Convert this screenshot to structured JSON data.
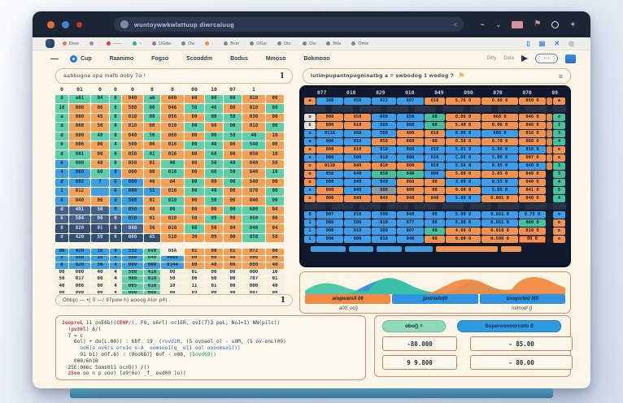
{
  "theme": {
    "titlebar": "#1d2634",
    "body": "#fbf5e8",
    "accent_blue": "#1f7ae0",
    "traffic_lights": [
      "#e8722c",
      "#3b82d8",
      "#c0392b"
    ],
    "cell_green": "#5ecfa6",
    "cell_orange": "#f2a159",
    "cell_blue": "#3f9ede",
    "cell_dark": "#46628b"
  },
  "browser": {
    "url": "wuntoywwkwlattuup diwrcaluug",
    "url_end": "<"
  },
  "bookmarks": {
    "items": [
      {
        "dot": "#e8793a",
        "label": "Dww"
      },
      {
        "dot": "#8a9ab0",
        "label": ""
      },
      {
        "dot": "#d04030",
        "label": "——"
      },
      {
        "dot": "#2fae7e",
        "label": "~"
      },
      {
        "dot": "#7a8694",
        "label": "DGtiw"
      },
      {
        "dot": "#7a8694",
        "label": "Ow"
      },
      {
        "dot": "#f09040",
        "label": "-"
      },
      {
        "dot": "#7a8694",
        "label": "Bcm"
      },
      {
        "dot": "#7a8694",
        "label": "OGw"
      },
      {
        "dot": "#7a8694",
        "label": "Oto."
      },
      {
        "dot": "#7a8694",
        "label": "Ow"
      },
      {
        "dot": "#7a8694",
        "label": "Btta"
      },
      {
        "dot": "#7a8694",
        "label": "Omw"
      }
    ]
  },
  "menu": {
    "dash": "—",
    "items": [
      "Cup",
      "Raanimo",
      "Fogso",
      "Scooddm",
      "Bodus",
      "Mmoso",
      "Bokmooo"
    ],
    "right_labels": [
      "Ditty",
      "Data"
    ],
    "pill": "⋯"
  },
  "formula_left": {
    "text": "aabbugoa opa mafb ooby 7o !",
    "end": "1"
  },
  "formula_right": {
    "text": "lutimpupantnpugninatbg a = swbodog 1 wodog ?",
    "flag": "⚑",
    "menu": "≡"
  },
  "left_grid": {
    "col_headers": [
      "0",
      "01",
      "0",
      "0",
      "0",
      "8",
      "8",
      "00",
      "10",
      "07",
      "1",
      ""
    ],
    "rows": [
      {
        "c": "GGGGOGOOGGOO",
        "v": [
          "d",
          "a01",
          "04",
          "0",
          "040",
          "a0",
          "660",
          "60",
          "00",
          "08",
          "010",
          "00"
        ]
      },
      {
        "c": "GOOGOGOGGOOG",
        "v": [
          "i6",
          "000",
          "06",
          "0",
          "500",
          "00",
          "046",
          "50",
          "40",
          "00",
          "010",
          "00"
        ]
      },
      {
        "c": "GOOGOGOOGGOO",
        "v": [
          "a",
          "060",
          "45",
          "0",
          "010",
          "08",
          "056",
          "00",
          "00",
          "58",
          "030",
          "00"
        ]
      },
      {
        "c": "GOOGOOOGOGOG",
        "v": [
          "d",
          "060",
          "50",
          "0",
          "010",
          "60",
          "010",
          "00",
          "60",
          "00",
          "010",
          "06"
        ]
      },
      {
        "c": "GOGGOGOOGGGO",
        "v": [
          "d",
          "000",
          "40",
          "0",
          "040",
          "50",
          "060",
          "00",
          "00",
          "50",
          "40",
          "10"
        ]
      },
      {
        "c": "GOOGOOOGGOGO",
        "v": [
          "6",
          "006",
          "00",
          "4",
          "500",
          "06",
          "016",
          "00",
          "40",
          "06",
          "540",
          "00"
        ]
      },
      {
        "c": "GGOGOGOOGOOO",
        "v": [
          "d",
          "001",
          "00",
          "0",
          "050",
          "01",
          "016",
          "00",
          "60",
          "00",
          "050",
          "10"
        ]
      },
      {
        "c": "BGOGOOGOGGOO",
        "v": [
          "6",
          "000",
          "40",
          "0",
          "050",
          "01",
          "40",
          "00",
          "50",
          "40",
          "040",
          "50"
        ]
      },
      {
        "c": "BBGBOOGOGGOG",
        "v": [
          "4",
          "060",
          "60",
          "0",
          "000",
          "00",
          "016",
          "00",
          "60",
          "50",
          "640",
          "10"
        ]
      },
      {
        "c": "BBBBBOOGOGOO",
        "v": [
          "d",
          "002",
          "7",
          "6",
          "000",
          "46",
          "d4",
          "00",
          "60",
          "00",
          "540",
          "00"
        ]
      },
      {
        "c": "BOBBBBOGGOOG",
        "v": [
          "1",
          "012",
          "",
          "6",
          "000",
          "51",
          "016",
          "00",
          "40",
          "00",
          "070",
          "00"
        ]
      },
      {
        "c": "BOOBBOGOGOOG",
        "v": [
          "6",
          "040",
          "06",
          "d",
          "500",
          "01",
          "010",
          "00",
          "50",
          "00",
          "040",
          "00"
        ]
      },
      {
        "c": "DDDBBOGOOGGO",
        "v": [
          "d",
          "401",
          "50",
          "0",
          "050",
          "40",
          "00",
          "00",
          "00",
          "00",
          "600",
          "04"
        ]
      },
      {
        "c": "DDDDBOOOGOGO",
        "v": [
          "6",
          "504",
          "06",
          "0",
          "050",
          "01",
          "010",
          "50",
          "09",
          "98",
          "050",
          "00"
        ]
      },
      {
        "c": "NNNNDOOGOOGO",
        "v": [
          "8",
          "020",
          "01",
          "0",
          "040",
          "56",
          "010",
          "00",
          "50",
          "04",
          "040",
          "04"
        ]
      },
      {
        "c": "NNNNNNOOOOGO",
        "v": [
          "d",
          "420",
          "59",
          "6",
          "000",
          "45",
          "510",
          "30",
          "09",
          "00",
          "050",
          "50"
        ]
      }
    ],
    "rows2": [
      {
        "c": "BBBBBGWOOOOO",
        "v": [
          "d6",
          "420",
          "16",
          "4",
          "532",
          "6v0",
          "05A",
          "01",
          "00",
          "01",
          "072",
          "00"
        ]
      },
      {
        "c": "BBBBBGBOOOOO",
        "v": [
          "0",
          "000",
          "10",
          "4",
          "500",
          "040",
          "4400",
          "00",
          "00",
          "40",
          "000",
          "00"
        ]
      },
      {
        "c": "BBBBBBBOOOOO",
        "v": [
          "0",
          "020",
          "50",
          "4",
          "000",
          "000",
          "0144",
          "00",
          "40",
          "00",
          "000",
          "40"
        ]
      },
      {
        "c": "WWWWGGWWWWWW",
        "v": [
          "00",
          "000",
          "40",
          "4",
          "500",
          "410",
          "00",
          "01",
          "00",
          "00",
          "000",
          "10"
        ]
      },
      {
        "c": "WWWWGGWWWWWW",
        "v": [
          "50",
          "017",
          "00",
          "4",
          "900",
          "010",
          "50",
          "06",
          "60",
          "00",
          "707",
          "01"
        ]
      },
      {
        "c": "WWWWGGWWWWWW",
        "v": [
          "40",
          "006",
          "00",
          "4",
          "005",
          "010",
          "10",
          "11",
          "01",
          "00",
          "000",
          "40"
        ]
      },
      {
        "c": "WWWWGGWWWWWW",
        "v": [
          "00",
          "000",
          "00",
          "4",
          "000",
          "000",
          "00",
          "05",
          "00",
          "40",
          "007",
          "00"
        ]
      }
    ]
  },
  "status_bar": {
    "text": "Obbp) — •( 0 —/ 97pow h) aooog Alor p4) .",
    "end": "1"
  },
  "right_table": {
    "headers": [
      "077",
      "010",
      "029",
      "010",
      "049",
      "090",
      "070",
      "070",
      "09"
    ],
    "rows": [
      {
        "l": "O:a",
        "cells": [
          "B:380",
          "B:050",
          "B:022",
          "B:607",
          "O:010",
          "O:5.76 0",
          "O:0.80 0",
          "O:050 0"
        ],
        "r": "O:a"
      },
      {
        "sep": true
      },
      {
        "l": "W:o",
        "cells": [
          "O:000",
          "O:650",
          "B:060",
          "B:650",
          "G:60",
          "O:0.06 0",
          "O:060 0",
          "O:046 0"
        ],
        "r": "G:o"
      },
      {
        "l": "W:6",
        "cells": [
          "O:000",
          "O:610",
          "B:560",
          "B:060",
          "G:60",
          "O:5.40 0",
          "O:0.06 0",
          "O:046 0"
        ],
        "r": "G:2"
      },
      {
        "l": "B:o",
        "cells": [
          "B:0116",
          "B:668",
          "B:560",
          "O:400",
          "O:010",
          "B:0.06 0",
          "B:800 0",
          "O:016 0"
        ],
        "r": "G:3"
      },
      {
        "l": "B:a",
        "cells": [
          "B:006",
          "B:010",
          "O:050",
          "O:060",
          "O:00",
          "O:0.50 0",
          "O:0.70 0",
          "O:060 0"
        ],
        "r": "G:4"
      },
      {
        "l": "O:o",
        "cells": [
          "O:000",
          "O:010",
          "B:010",
          "B:060",
          "B:010",
          "B:5.01 0",
          "B:5.06 0",
          "B:010 0"
        ],
        "r": "O:o"
      },
      {
        "l": "B:s",
        "cells": [
          "B:000",
          "B:500",
          "B:010",
          "B:000",
          "B:010",
          "B:C.05 0",
          "B:5.00 0",
          "O:007 0"
        ],
        "r": "O:o"
      },
      {
        "l": "O:o",
        "cells": [
          "O:0110",
          "O:040",
          "O:010",
          "O:000",
          "B:010",
          "B:5.56 0",
          "B:0.05 0",
          "B:040 0"
        ],
        "r": "G:3"
      },
      {
        "l": "O:o",
        "cells": [
          "B:050",
          "B:040",
          "G:050",
          "G:040",
          "B:000",
          "O:5.00 0",
          "O:2.05 0",
          "O:040 0"
        ],
        "r": "G:3"
      },
      {
        "l": "O:o",
        "cells": [
          "B:000",
          "B:040",
          "B:040",
          "O:060",
          "O:00",
          "B:3.00 0",
          "B:0.55 0",
          "O:040 0"
        ],
        "r": "G:4"
      },
      {
        "l": "B:s",
        "cells": [
          "O:000",
          "B:040",
          "Y:000",
          "O:000",
          "O:00",
          "O:0.00 0",
          "B:5.05 0",
          "O:041 0"
        ],
        "r": "G:5"
      },
      {
        "l": "O:o",
        "cells": [
          "O:000",
          "O:040",
          "O:040",
          "O:040",
          "O:040",
          "B:5.00 0",
          "O:0.001 0",
          "O:040 0"
        ],
        "r": "G:4"
      },
      {
        "sep": true
      },
      {
        "l": "B:0",
        "cells": [
          "B:007",
          "B:010",
          "B:500",
          "B:040",
          "B:00",
          "B:5.00 0",
          "B:0.661 0",
          "B:0.75 0"
        ],
        "r": "B:o"
      },
      {
        "l": "B:1",
        "cells": [
          "B:000",
          "B:500",
          "B:010",
          "B:077",
          "B:00",
          "B:5.88 0",
          "B:0.661 0",
          "G:060 0"
        ],
        "r": "O:o"
      },
      {
        "l": "B:1",
        "cells": [
          "B:000",
          "B:010",
          "B:500",
          "B:007",
          "G:00",
          "O:4.00 0",
          "O:0.010 0",
          "O:010 0"
        ],
        "r": "O:o"
      },
      {
        "l": "B:1",
        "cells": [
          "B:000",
          "B:000",
          "B:010",
          "B:040",
          "O:00",
          "O:0.00 0",
          "O:0.500 0",
          "R:00 0"
        ],
        "r": "O:o"
      }
    ],
    "footer": [
      {
        "color": "#3f9ee0",
        "w": 14
      },
      {
        "color": "#3f9ee0",
        "w": 10
      },
      {
        "color": "#3f9ee0",
        "w": 10
      },
      {
        "color": "#3f9ee0",
        "w": 11
      },
      {
        "color": "#ef9450",
        "w": 25
      },
      {
        "color": "#ef9450",
        "w": 8
      }
    ]
  },
  "area_chart": {
    "legend": [
      {
        "color": "#f08a45",
        "label": "aiogwaniA 06"
      },
      {
        "color": "#2f93e0",
        "label": "jpwnbito(0"
      },
      {
        "color": "#2f93e0",
        "label": "ssogorbid 0(0"
      }
    ],
    "left_caption": "a00, oci)",
    "right_caption": "rolmodi ()",
    "wave_colors": {
      "teal": "#3cc4a2",
      "blue": "#2e8fd8",
      "orange": "#f08840"
    }
  },
  "chart_data": {
    "type": "area",
    "x": [
      0,
      1,
      2,
      3,
      4,
      5,
      6,
      7,
      8,
      9,
      10
    ],
    "series": [
      {
        "name": "aiogwaniA 06",
        "values": [
          0.5,
          0.85,
          0.55,
          0.3,
          0.9,
          0.6,
          0.3,
          0.55,
          0.35,
          0.2,
          0.15
        ]
      },
      {
        "name": "jpwnbito(0",
        "values": [
          0.1,
          0.2,
          0.35,
          0.8,
          0.9,
          0.5,
          0.25,
          0.2,
          0.3,
          0.25,
          0.3
        ]
      },
      {
        "name": "ssogorbid 0(0",
        "values": [
          0.05,
          0.1,
          0.15,
          0.2,
          0.3,
          0.55,
          0.75,
          0.5,
          0.8,
          0.85,
          0.4
        ]
      }
    ],
    "title": "",
    "xlabel": "",
    "ylabel": "",
    "legend_position": "bottom",
    "grid": false
  },
  "code_panel": {
    "lines": [
      [
        [
          "k",
          "2ooproL"
        ],
        [
          "d",
          " 11 ooE6b)("
        ],
        [
          "k",
          "CENP/"
        ],
        [
          "d",
          "), FO, o6rl) oc1ER, ovI(7)3 poL, NoJ=1) NN(pilc))"
        ]
      ],
      [
        [
          "d",
          "  ("
        ],
        [
          "k",
          "pvt6l"
        ],
        [
          "d",
          ") 6/)"
        ]
      ],
      [
        [
          "d",
          "  7 = c"
        ]
      ],
      [
        [
          "d",
          "    6ol) • do(L.00)) : 6bf. i9_ ("
        ],
        [
          "b",
          "rovd1R"
        ],
        [
          "d",
          ", (5 ovoaol_o) - s0M, (5 ov-onL(09)"
        ]
      ],
      [
        [
          "b",
          "      oo6(o ov6)s oro1o o:A_ oomsoo1(q_ o11 ool oooomso1())"
        ]
      ],
      [
        [
          "d",
          "      91 b1) oOf.6) : (9oo6D)} 6of - o0B, ("
        ],
        [
          "t",
          "5ovd69))"
        ]
      ],
      [
        [
          "d",
          "    000/6h1B"
        ]
      ],
      [
        [
          "d",
          "  25E:066c 5oms011 ocn9)) /()"
        ]
      ],
      [
        [
          "k",
          "  25oo"
        ],
        [
          "d",
          " oo n p ooo) [o9!6o) _f_ ovd00 )o))"
        ]
      ]
    ]
  },
  "actions": {
    "buttons": [
      {
        "label": "obo() =",
        "color": "#8fd9ba"
      },
      {
        "label": "Superosooorosto 0",
        "color": "#2f9ae0"
      }
    ],
    "values": [
      "-80.000",
      "- 85.00",
      "9 9.800",
      "- 80.00"
    ]
  }
}
